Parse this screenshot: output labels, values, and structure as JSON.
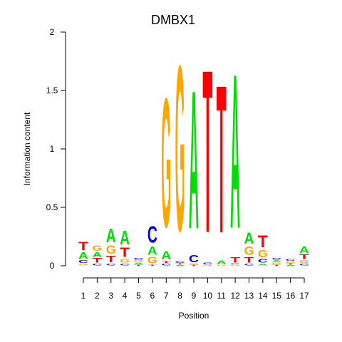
{
  "chart_data": {
    "type": "sequence-logo",
    "title": "DMBX1",
    "xlabel": "Position",
    "ylabel": "Information content",
    "ylim": [
      0,
      2
    ],
    "y_ticks": [
      "0",
      "0.5",
      "1",
      "1.5",
      "2"
    ],
    "positions": [
      "1",
      "2",
      "3",
      "4",
      "5",
      "6",
      "7",
      "8",
      "9",
      "10",
      "11",
      "12",
      "13",
      "14",
      "15",
      "16",
      "17"
    ],
    "colors": {
      "A": "#00dd00",
      "C": "#0000ee",
      "G": "#ffa500",
      "T": "#ff0000"
    },
    "columns": [
      {
        "position": "1",
        "letters": [
          [
            "G",
            0.02
          ],
          [
            "C",
            0.03
          ],
          [
            "A",
            0.07
          ],
          [
            "T",
            0.09
          ]
        ]
      },
      {
        "position": "2",
        "letters": [
          [
            "C",
            0.02
          ],
          [
            "T",
            0.05
          ],
          [
            "A",
            0.05
          ],
          [
            "G",
            0.06
          ]
        ]
      },
      {
        "position": "3",
        "letters": [
          [
            "C",
            0.02
          ],
          [
            "T",
            0.07
          ],
          [
            "G",
            0.09
          ],
          [
            "A",
            0.15
          ]
        ]
      },
      {
        "position": "4",
        "letters": [
          [
            "C",
            0.02
          ],
          [
            "G",
            0.04
          ],
          [
            "T",
            0.1
          ],
          [
            "A",
            0.15
          ]
        ]
      },
      {
        "position": "5",
        "letters": [
          [
            "T",
            0.01
          ],
          [
            "A",
            0.02
          ],
          [
            "G",
            0.02
          ],
          [
            "C",
            0.02
          ]
        ]
      },
      {
        "position": "6",
        "letters": [
          [
            "T",
            0.01
          ],
          [
            "G",
            0.07
          ],
          [
            "A",
            0.09
          ],
          [
            "C",
            0.18
          ]
        ]
      },
      {
        "position": "7",
        "letters": [
          [
            "C",
            0.02
          ],
          [
            "T",
            0.02
          ],
          [
            "A",
            0.09
          ],
          [
            "G",
            1.38
          ]
        ]
      },
      {
        "position": "8",
        "letters": [
          [
            "A",
            0.01
          ],
          [
            "T",
            0.01
          ],
          [
            "C",
            0.02
          ],
          [
            "G",
            1.77
          ]
        ]
      },
      {
        "position": "9",
        "letters": [
          [
            "T",
            0.01
          ],
          [
            "G",
            0.01
          ],
          [
            "C",
            0.08
          ],
          [
            "A",
            1.48
          ]
        ]
      },
      {
        "position": "10",
        "letters": [
          [
            "G",
            0.01
          ],
          [
            "C",
            0.02
          ],
          [
            "T",
            1.74
          ]
        ]
      },
      {
        "position": "11",
        "letters": [
          [
            "G",
            0.01
          ],
          [
            "A",
            0.04
          ],
          [
            "T",
            1.58
          ]
        ]
      },
      {
        "position": "12",
        "letters": [
          [
            "G",
            0.01
          ],
          [
            "C",
            0.01
          ],
          [
            "T",
            0.06
          ],
          [
            "A",
            1.65
          ]
        ]
      },
      {
        "position": "13",
        "letters": [
          [
            "C",
            0.02
          ],
          [
            "T",
            0.06
          ],
          [
            "G",
            0.09
          ],
          [
            "A",
            0.12
          ]
        ]
      },
      {
        "position": "14",
        "letters": [
          [
            "A",
            0.02
          ],
          [
            "C",
            0.04
          ],
          [
            "G",
            0.08
          ],
          [
            "T",
            0.13
          ]
        ]
      },
      {
        "position": "15",
        "letters": [
          [
            "T",
            0.01
          ],
          [
            "G",
            0.02
          ],
          [
            "A",
            0.02
          ],
          [
            "C",
            0.02
          ]
        ]
      },
      {
        "position": "16",
        "letters": [
          [
            "A",
            0.01
          ],
          [
            "T",
            0.01
          ],
          [
            "G",
            0.02
          ],
          [
            "C",
            0.02
          ]
        ]
      },
      {
        "position": "17",
        "letters": [
          [
            "C",
            0.02
          ],
          [
            "G",
            0.03
          ],
          [
            "T",
            0.05
          ],
          [
            "A",
            0.07
          ]
        ]
      }
    ]
  }
}
